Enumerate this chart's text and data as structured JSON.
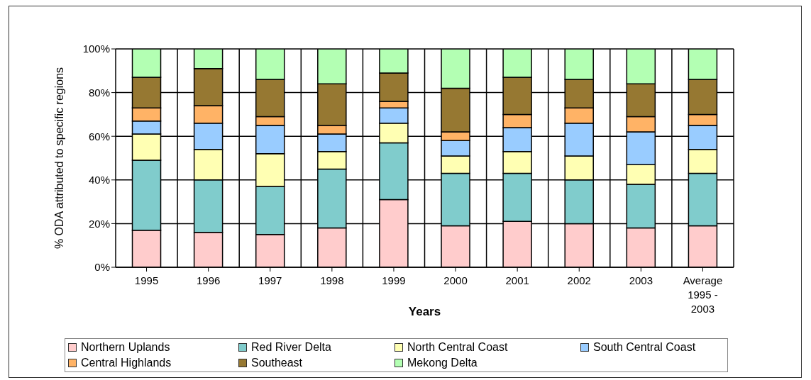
{
  "chart_data": {
    "type": "bar",
    "stacked": true,
    "xlabel": "Years",
    "ylabel": "% ODA attributed to specific regions",
    "categories": [
      "1995",
      "1996",
      "1997",
      "1998",
      "1999",
      "2000",
      "2001",
      "2002",
      "2003",
      "Average 1995 - 2003"
    ],
    "ylim": [
      0,
      100
    ],
    "yticks": [
      {
        "value": 0,
        "label": "0%"
      },
      {
        "value": 20,
        "label": "20%"
      },
      {
        "value": 40,
        "label": "40%"
      },
      {
        "value": 60,
        "label": "60%"
      },
      {
        "value": 80,
        "label": "80%"
      },
      {
        "value": 100,
        "label": "100%"
      }
    ],
    "grid": true,
    "legend": "bottom",
    "series": [
      {
        "name": "Northern Uplands",
        "color": "#ffcccc",
        "values": [
          17,
          16,
          15,
          18,
          31,
          19,
          21,
          20,
          18,
          19
        ]
      },
      {
        "name": "Red River Delta",
        "color": "#80cccc",
        "values": [
          32,
          24,
          22,
          27,
          26,
          24,
          22,
          20,
          20,
          24
        ]
      },
      {
        "name": "North Central Coast",
        "color": "#ffffb3",
        "values": [
          12,
          14,
          15,
          8,
          9,
          8,
          10,
          11,
          9,
          11
        ]
      },
      {
        "name": "South Central Coast",
        "color": "#99ccff",
        "values": [
          6,
          12,
          13,
          8,
          7,
          7,
          11,
          15,
          15,
          11
        ]
      },
      {
        "name": "Central Highlands",
        "color": "#ffb366",
        "values": [
          6,
          8,
          4,
          4,
          3,
          4,
          6,
          7,
          7,
          5
        ]
      },
      {
        "name": "Southeast",
        "color": "#967832",
        "values": [
          14,
          17,
          17,
          19,
          13,
          20,
          17,
          13,
          15,
          16
        ]
      },
      {
        "name": "Mekong Delta",
        "color": "#b3ffb3",
        "values": [
          13,
          9,
          14,
          16,
          11,
          18,
          13,
          14,
          16,
          14
        ]
      }
    ]
  }
}
